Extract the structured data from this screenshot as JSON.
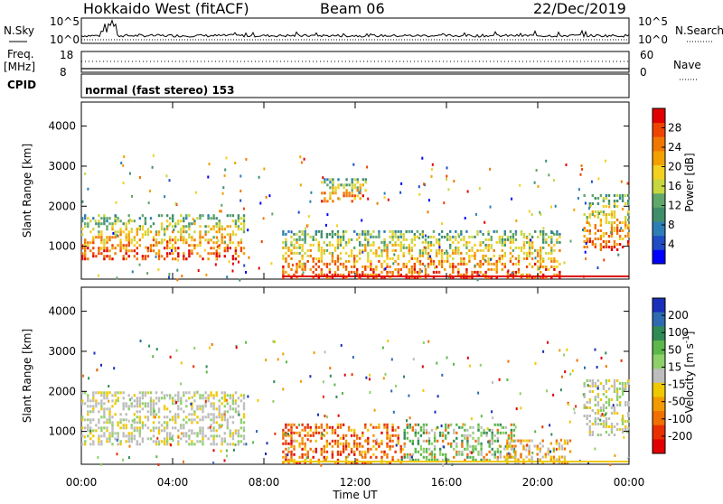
{
  "header": {
    "station": "Hokkaido West (fitACF)",
    "beam": "Beam 06",
    "date": "22/Dec/2019"
  },
  "strip": {
    "nsky_label": "N.Sky",
    "nsearch_label": "N.Search",
    "freq_label_1": "Freq.",
    "freq_label_2": "[MHz]",
    "nave_label": "Nave",
    "cpid_label": "CPID",
    "cpid_text": "normal (fast stereo) 153",
    "noise_ticks": [
      "10^5",
      "10^0"
    ],
    "noise_ticks_right": [
      "10^5",
      "10^0"
    ],
    "freq_ticks": [
      "18",
      "8"
    ],
    "nave_ticks": [
      "60",
      "0"
    ]
  },
  "chart_data": [
    {
      "type": "heatmap",
      "title": "",
      "ylabel": "Slant Range [km]",
      "xlabel": "",
      "ylim": [
        180,
        4600
      ],
      "y_ticks": [
        1000,
        2000,
        3000,
        4000
      ],
      "x_ticks": [
        "00:00",
        "04:00",
        "08:00",
        "12:00",
        "16:00",
        "20:00",
        "00:00"
      ],
      "colorbar": {
        "label": "Power [dB]",
        "ticks": [
          "4",
          "8",
          "12",
          "16",
          "20",
          "24",
          "28"
        ],
        "colors": [
          "#0000ff",
          "#204cc4",
          "#2e7eb6",
          "#3f8f6a",
          "#5fa76a",
          "#c8d640",
          "#f4d020",
          "#f2a100",
          "#f07800",
          "#ee4400",
          "#e00000"
        ]
      },
      "echo_regions": [
        {
          "start_h": 0.0,
          "end_h": 7.2,
          "range_min_km": 700,
          "range_max_km": 1800,
          "dominant": "orange/red",
          "note": "band peaking ~1100 km"
        },
        {
          "start_h": 8.8,
          "end_h": 21.0,
          "range_min_km": 200,
          "range_max_km": 1400,
          "dominant": "green/orange/red"
        },
        {
          "start_h": 10.5,
          "end_h": 12.5,
          "range_min_km": 2100,
          "range_max_km": 2700,
          "dominant": "blue/green"
        },
        {
          "start_h": 22.0,
          "end_h": 24.0,
          "range_min_km": 900,
          "range_max_km": 2300,
          "dominant": "green/orange/red"
        }
      ]
    },
    {
      "type": "heatmap",
      "title": "",
      "ylabel": "Slant Range [km]",
      "xlabel": "Time UT",
      "ylim": [
        180,
        4600
      ],
      "y_ticks": [
        1000,
        2000,
        3000,
        4000
      ],
      "x_ticks": [
        "00:00",
        "04:00",
        "08:00",
        "12:00",
        "16:00",
        "20:00",
        "00:00"
      ],
      "colorbar": {
        "label": "Velocity [m s^-1]",
        "ticks": [
          "200",
          "100",
          "50",
          "15",
          "-15",
          "-50",
          "-100",
          "-200"
        ],
        "colors": [
          "#1a2fb8",
          "#2e6ab0",
          "#2f8a55",
          "#5cb84a",
          "#8ed06a",
          "#bdbdbd",
          "#f0c800",
          "#f29a00",
          "#f07000",
          "#e83000",
          "#e00000"
        ]
      },
      "echo_regions": [
        {
          "start_h": 0.0,
          "end_h": 7.2,
          "range_min_km": 700,
          "range_max_km": 2000,
          "dominant": "grey"
        },
        {
          "start_h": 8.8,
          "end_h": 14.0,
          "range_min_km": 200,
          "range_max_km": 1200,
          "dominant": "orange/red"
        },
        {
          "start_h": 14.0,
          "end_h": 19.0,
          "range_min_km": 300,
          "range_max_km": 1200,
          "dominant": "green/grey"
        },
        {
          "start_h": 18.5,
          "end_h": 21.5,
          "range_min_km": 200,
          "range_max_km": 800,
          "dominant": "orange/yellow"
        },
        {
          "start_h": 22.0,
          "end_h": 24.0,
          "range_min_km": 900,
          "range_max_km": 2300,
          "dominant": "grey"
        }
      ]
    }
  ]
}
